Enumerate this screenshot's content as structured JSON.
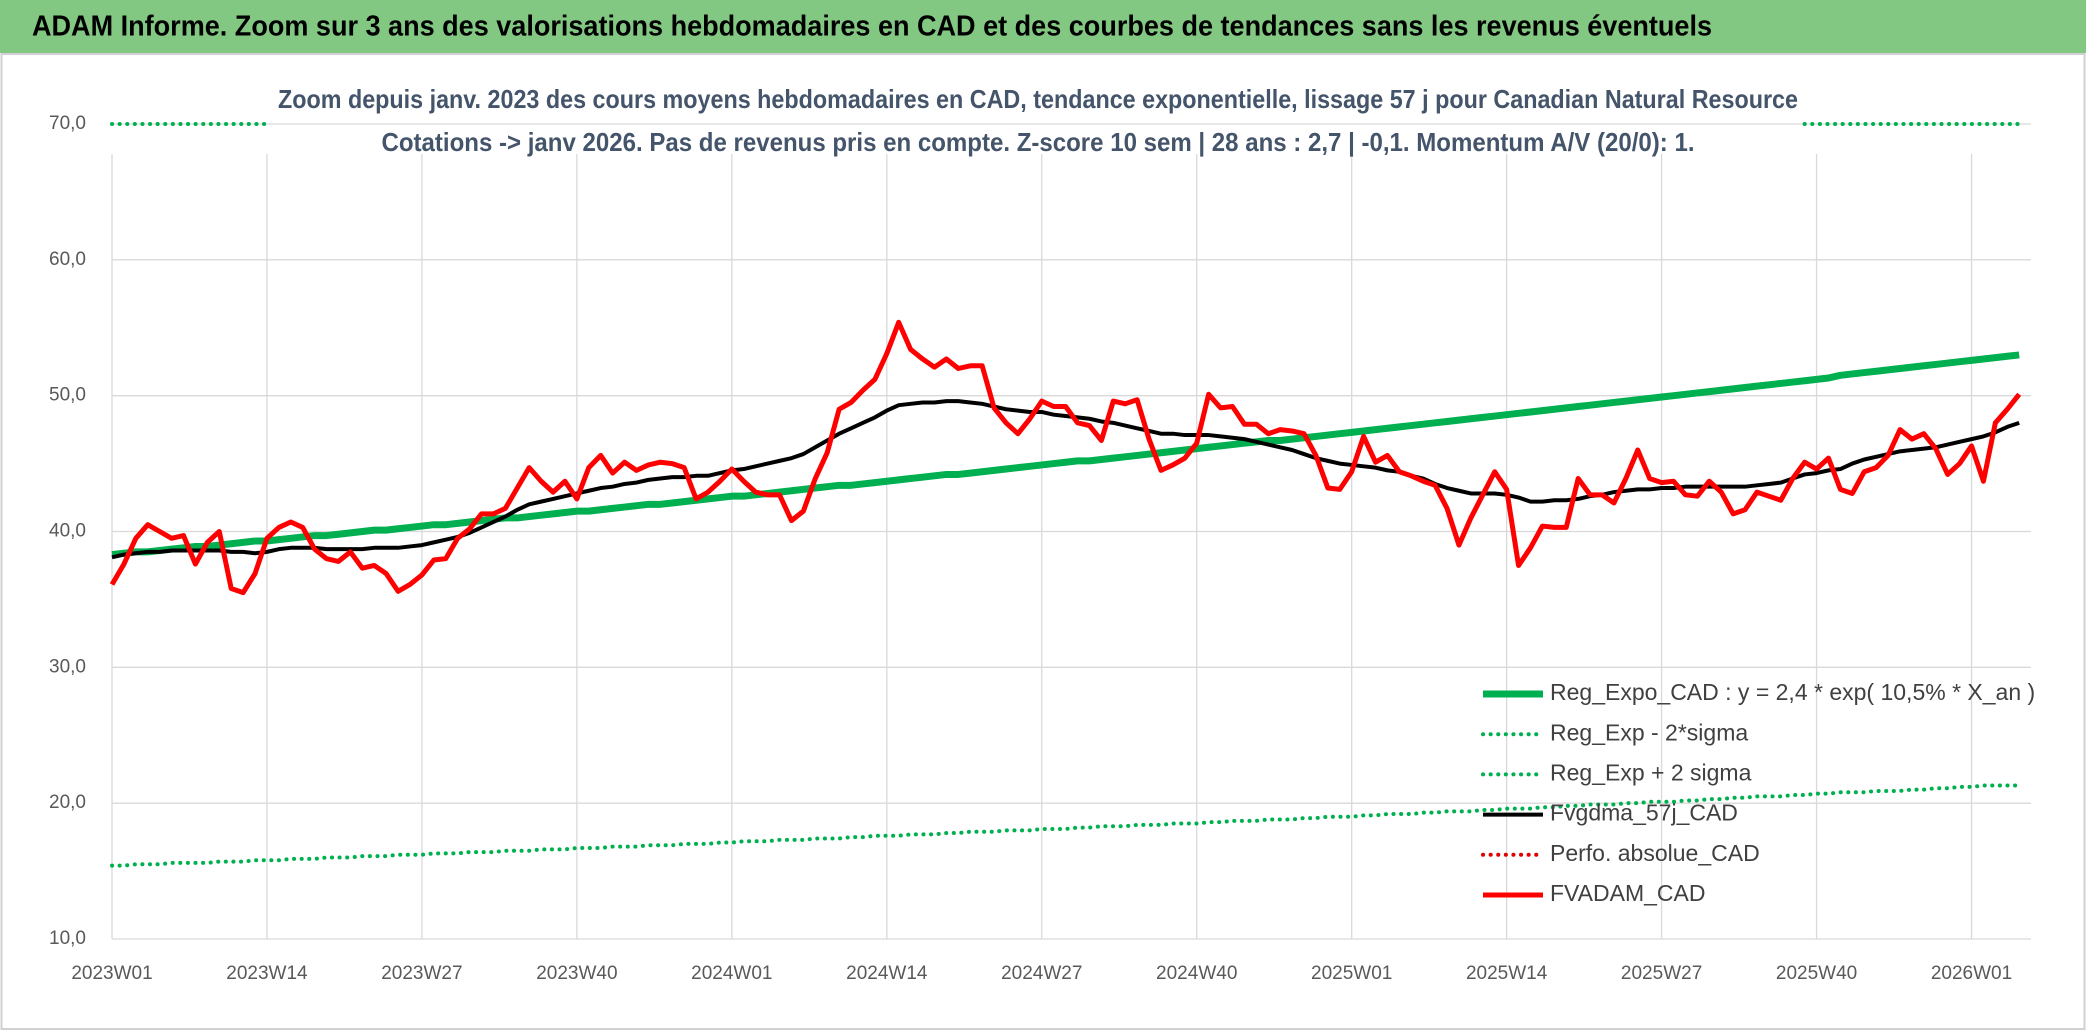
{
  "chart_data": {
    "type": "line",
    "title": "ADAM Informe. Zoom sur 3 ans des valorisations hebdomadaires en CAD et des courbes de tendances sans les revenus éventuels",
    "subtitle": [
      "Zoom depuis janv. 2023 des cours moyens hebdomadaires en CAD, tendance exponentielle, lissage 57 j pour Canadian Natural Resource",
      "Cotations -> janv 2026. Pas de revenus pris en compte. Z-score 10 sem | 28 ans : 2,7 | -0,1. Momentum A/V (20/0): 1."
    ],
    "categories": [
      "2023W01",
      null,
      null,
      null,
      null,
      null,
      null,
      null,
      null,
      null,
      null,
      null,
      null,
      "2023W14",
      null,
      null,
      null,
      null,
      null,
      null,
      null,
      null,
      null,
      null,
      null,
      null,
      "2023W27",
      null,
      null,
      null,
      null,
      null,
      null,
      null,
      null,
      null,
      null,
      null,
      null,
      "2023W40",
      null,
      null,
      null,
      null,
      null,
      null,
      null,
      null,
      null,
      null,
      null,
      null,
      "2024W01",
      null,
      null,
      null,
      null,
      null,
      null,
      null,
      null,
      null,
      null,
      null,
      null,
      "2024W14",
      null,
      null,
      null,
      null,
      null,
      null,
      null,
      null,
      null,
      null,
      null,
      null,
      "2024W27",
      null,
      null,
      null,
      null,
      null,
      null,
      null,
      null,
      null,
      null,
      null,
      null,
      "2024W40",
      null,
      null,
      null,
      null,
      null,
      null,
      null,
      null,
      null,
      null,
      null,
      null,
      "2025W01",
      null,
      null,
      null,
      null,
      null,
      null,
      null,
      null,
      null,
      null,
      null,
      null,
      "2025W14",
      null,
      null,
      null,
      null,
      null,
      null,
      null,
      null,
      null,
      null,
      null,
      null,
      "2025W27",
      null,
      null,
      null,
      null,
      null,
      null,
      null,
      null,
      null,
      null,
      null,
      null,
      "2025W40",
      null,
      null,
      null,
      null,
      null,
      null,
      null,
      null,
      null,
      null,
      null,
      null,
      "2026W01",
      null,
      null,
      null,
      null
    ],
    "ylim": [
      10,
      70
    ],
    "yticks": [
      {
        "value": 10,
        "label": "10,0"
      },
      {
        "value": 20,
        "label": "20,0"
      },
      {
        "value": 30,
        "label": "30,0"
      },
      {
        "value": 40,
        "label": "40,0"
      },
      {
        "value": 50,
        "label": "50,0"
      },
      {
        "value": 60,
        "label": "60,0"
      },
      {
        "value": 70,
        "label": "70,0"
      }
    ],
    "grid": true,
    "legend": "lower right",
    "series": [
      {
        "name": "Reg_Expo_CAD : y = 2,4 * exp( 10,5% *  X_an )",
        "color": "#00b050",
        "style": "solid",
        "values": [
          38.3,
          38.4,
          38.5,
          38.5,
          38.6,
          38.7,
          38.8,
          38.9,
          38.9,
          39.0,
          39.1,
          39.2,
          39.3,
          39.3,
          39.4,
          39.5,
          39.6,
          39.7,
          39.7,
          39.8,
          39.9,
          40.0,
          40.1,
          40.1,
          40.2,
          40.3,
          40.4,
          40.5,
          40.5,
          40.6,
          40.7,
          40.8,
          40.9,
          41.0,
          41.0,
          41.1,
          41.2,
          41.3,
          41.4,
          41.5,
          41.5,
          41.6,
          41.7,
          41.8,
          41.9,
          42.0,
          42.0,
          42.1,
          42.2,
          42.3,
          42.4,
          42.5,
          42.6,
          42.6,
          42.7,
          42.8,
          42.9,
          43.0,
          43.1,
          43.2,
          43.3,
          43.4,
          43.4,
          43.5,
          43.6,
          43.7,
          43.8,
          43.9,
          44.0,
          44.1,
          44.2,
          44.2,
          44.3,
          44.4,
          44.5,
          44.6,
          44.7,
          44.8,
          44.9,
          45.0,
          45.1,
          45.2,
          45.2,
          45.3,
          45.4,
          45.5,
          45.6,
          45.7,
          45.8,
          45.9,
          46.0,
          46.1,
          46.2,
          46.3,
          46.4,
          46.5,
          46.6,
          46.7,
          46.7,
          46.8,
          46.9,
          47.0,
          47.1,
          47.2,
          47.3,
          47.4,
          47.5,
          47.6,
          47.7,
          47.8,
          47.9,
          48.0,
          48.1,
          48.2,
          48.3,
          48.4,
          48.5,
          48.6,
          48.7,
          48.8,
          48.9,
          49.0,
          49.1,
          49.2,
          49.3,
          49.4,
          49.5,
          49.6,
          49.7,
          49.8,
          49.9,
          50.0,
          50.1,
          50.2,
          50.3,
          50.4,
          50.5,
          50.6,
          50.7,
          50.8,
          50.9,
          51.0,
          51.1,
          51.2,
          51.3,
          51.5,
          51.6,
          51.7,
          51.8,
          51.9,
          52.0,
          52.1,
          52.2,
          52.3,
          52.4,
          52.5,
          52.6,
          52.7,
          52.8,
          52.9,
          53.0
        ]
      },
      {
        "name": "Reg_Exp - 2*sigma",
        "color": "#00b050",
        "style": "dotted",
        "values": [
          15.4,
          15.4,
          15.5,
          15.5,
          15.5,
          15.6,
          15.6,
          15.6,
          15.6,
          15.7,
          15.7,
          15.7,
          15.8,
          15.8,
          15.8,
          15.9,
          15.9,
          15.9,
          16.0,
          16.0,
          16.0,
          16.1,
          16.1,
          16.1,
          16.2,
          16.2,
          16.2,
          16.3,
          16.3,
          16.3,
          16.4,
          16.4,
          16.4,
          16.5,
          16.5,
          16.5,
          16.6,
          16.6,
          16.6,
          16.7,
          16.7,
          16.7,
          16.8,
          16.8,
          16.8,
          16.9,
          16.9,
          16.9,
          17.0,
          17.0,
          17.0,
          17.1,
          17.1,
          17.2,
          17.2,
          17.2,
          17.3,
          17.3,
          17.3,
          17.4,
          17.4,
          17.4,
          17.5,
          17.5,
          17.6,
          17.6,
          17.6,
          17.7,
          17.7,
          17.7,
          17.8,
          17.8,
          17.9,
          17.9,
          17.9,
          18.0,
          18.0,
          18.0,
          18.1,
          18.1,
          18.1,
          18.2,
          18.2,
          18.3,
          18.3,
          18.3,
          18.4,
          18.4,
          18.4,
          18.5,
          18.5,
          18.5,
          18.6,
          18.6,
          18.7,
          18.7,
          18.7,
          18.8,
          18.8,
          18.8,
          18.9,
          18.9,
          19.0,
          19.0,
          19.0,
          19.1,
          19.1,
          19.2,
          19.2,
          19.2,
          19.3,
          19.3,
          19.4,
          19.4,
          19.4,
          19.5,
          19.5,
          19.6,
          19.6,
          19.6,
          19.7,
          19.7,
          19.8,
          19.8,
          19.9,
          19.9,
          19.9,
          20.0,
          20.0,
          20.1,
          20.1,
          20.1,
          20.2,
          20.2,
          20.3,
          20.3,
          20.4,
          20.4,
          20.5,
          20.5,
          20.5,
          20.6,
          20.6,
          20.7,
          20.7,
          20.8,
          20.8,
          20.8,
          20.9,
          20.9,
          20.9,
          21.0,
          21.0,
          21.1,
          21.1,
          21.2,
          21.2,
          21.3,
          21.3,
          21.3,
          21.3
        ]
      },
      {
        "name": "Reg_Exp + 2 sigma",
        "color": "#00b050",
        "style": "dotted",
        "values": [
          70,
          70,
          70,
          70,
          70,
          70,
          70,
          70,
          70,
          70,
          70,
          70,
          70,
          70,
          null,
          null,
          null,
          null,
          null,
          null,
          null,
          null,
          null,
          null,
          null,
          null,
          null,
          null,
          null,
          null,
          null,
          null,
          null,
          null,
          null,
          null,
          null,
          null,
          null,
          null,
          null,
          null,
          null,
          null,
          null,
          null,
          null,
          null,
          null,
          null,
          null,
          null,
          null,
          null,
          null,
          null,
          null,
          null,
          null,
          null,
          null,
          null,
          null,
          null,
          null,
          null,
          null,
          null,
          null,
          null,
          null,
          null,
          null,
          null,
          null,
          null,
          null,
          null,
          null,
          null,
          null,
          null,
          null,
          null,
          null,
          null,
          null,
          null,
          null,
          null,
          null,
          null,
          null,
          null,
          null,
          null,
          null,
          null,
          null,
          null,
          null,
          null,
          null,
          null,
          null,
          null,
          null,
          null,
          null,
          null,
          null,
          null,
          null,
          null,
          null,
          null,
          null,
          null,
          null,
          null,
          null,
          null,
          null,
          null,
          null,
          null,
          null,
          null,
          null,
          null,
          null,
          null,
          null,
          null,
          null,
          null,
          null,
          null,
          null,
          null,
          null,
          null,
          70,
          70,
          70,
          70,
          70,
          70,
          70,
          70,
          70,
          70,
          70,
          70,
          70,
          70,
          70,
          70,
          70,
          70,
          70
        ]
      },
      {
        "name": "Fvgdma_57j_CAD",
        "color": "#000000",
        "style": "solid",
        "values": [
          38.1,
          38.3,
          38.4,
          38.5,
          38.5,
          38.6,
          38.6,
          38.6,
          38.6,
          38.6,
          38.5,
          38.5,
          38.4,
          38.5,
          38.7,
          38.8,
          38.8,
          38.8,
          38.7,
          38.7,
          38.7,
          38.7,
          38.8,
          38.8,
          38.8,
          38.9,
          39.0,
          39.2,
          39.4,
          39.6,
          39.9,
          40.3,
          40.7,
          41.1,
          41.6,
          42.0,
          42.2,
          42.4,
          42.6,
          42.8,
          43.0,
          43.2,
          43.3,
          43.5,
          43.6,
          43.8,
          43.9,
          44.0,
          44.0,
          44.1,
          44.1,
          44.3,
          44.5,
          44.6,
          44.8,
          45.0,
          45.2,
          45.4,
          45.7,
          46.2,
          46.7,
          47.2,
          47.6,
          48.0,
          48.4,
          48.9,
          49.3,
          49.4,
          49.5,
          49.5,
          49.6,
          49.6,
          49.5,
          49.4,
          49.2,
          49.0,
          48.9,
          48.8,
          48.8,
          48.6,
          48.5,
          48.4,
          48.3,
          48.1,
          48.0,
          47.8,
          47.6,
          47.4,
          47.2,
          47.2,
          47.1,
          47.1,
          47.1,
          47.0,
          46.9,
          46.8,
          46.6,
          46.4,
          46.2,
          46.0,
          45.7,
          45.4,
          45.2,
          45.0,
          44.9,
          44.8,
          44.7,
          44.5,
          44.4,
          44.1,
          43.9,
          43.5,
          43.2,
          43.0,
          42.8,
          42.8,
          42.8,
          42.7,
          42.5,
          42.2,
          42.2,
          42.3,
          42.3,
          42.4,
          42.6,
          42.7,
          42.9,
          43.0,
          43.1,
          43.1,
          43.2,
          43.2,
          43.3,
          43.3,
          43.3,
          43.3,
          43.3,
          43.3,
          43.4,
          43.5,
          43.6,
          43.9,
          44.2,
          44.3,
          44.5,
          44.6,
          45.0,
          45.3,
          45.5,
          45.7,
          45.9,
          46.0,
          46.1,
          46.2,
          46.4,
          46.6,
          46.8,
          47.0,
          47.3,
          47.7,
          48.0
        ]
      },
      {
        "name": "Perfo. absolue_CAD",
        "color": "#e00000",
        "style": "dotted",
        "values": [
          null,
          null,
          null,
          null,
          null,
          null,
          null,
          null,
          null,
          null,
          null,
          null,
          null,
          null,
          null,
          null,
          null,
          null,
          null,
          null,
          null,
          null,
          null,
          null,
          null,
          null,
          null,
          null,
          null,
          null,
          null,
          null,
          null,
          null,
          null,
          null,
          null,
          null,
          null,
          null,
          null,
          null,
          null,
          null,
          null,
          null,
          null,
          null,
          null,
          null,
          null,
          null,
          null,
          null,
          null,
          null,
          null,
          null,
          null,
          null,
          null,
          null,
          null,
          null,
          null,
          null,
          null,
          null,
          null,
          null,
          null,
          null,
          null,
          null,
          null,
          null,
          null,
          null,
          null,
          null,
          null,
          null,
          null,
          null,
          null,
          null,
          null,
          null,
          null,
          null,
          null,
          null,
          null,
          null,
          null,
          null,
          null,
          null,
          null,
          null,
          null,
          null,
          null,
          null,
          null,
          null,
          null,
          null,
          null,
          null,
          null,
          null,
          null,
          null,
          null,
          null,
          null,
          null,
          null,
          null,
          null,
          null,
          null,
          null,
          null,
          null,
          null,
          null,
          null,
          null,
          null,
          null,
          null,
          null,
          null,
          null,
          null,
          null,
          null,
          null,
          null,
          null,
          null,
          null,
          null,
          null,
          null,
          null,
          null,
          null,
          null,
          null,
          null,
          null,
          null,
          null,
          null,
          null,
          null,
          null,
          null
        ]
      },
      {
        "name": "FVADAM_CAD",
        "color": "#ff0000",
        "style": "solid",
        "values": [
          36.1,
          37.6,
          39.5,
          40.5,
          40.0,
          39.5,
          39.7,
          37.6,
          39.2,
          40.0,
          35.8,
          35.5,
          36.9,
          39.5,
          40.3,
          40.7,
          40.3,
          38.7,
          38.0,
          37.8,
          38.5,
          37.3,
          37.5,
          36.9,
          35.6,
          36.1,
          36.8,
          37.9,
          38.0,
          39.5,
          40.2,
          41.3,
          41.3,
          41.7,
          43.2,
          44.7,
          43.7,
          42.9,
          43.7,
          42.4,
          44.7,
          45.6,
          44.3,
          45.1,
          44.5,
          44.9,
          45.1,
          45.0,
          44.7,
          42.4,
          42.9,
          43.7,
          44.6,
          43.7,
          42.9,
          42.7,
          42.7,
          40.8,
          41.5,
          43.9,
          45.8,
          49.0,
          49.5,
          50.4,
          51.2,
          53.1,
          55.4,
          53.4,
          52.7,
          52.1,
          52.7,
          52.0,
          52.2,
          52.2,
          49.1,
          48.0,
          47.2,
          48.3,
          49.6,
          49.2,
          49.2,
          48.0,
          47.8,
          46.7,
          49.6,
          49.4,
          49.7,
          46.8,
          44.5,
          44.9,
          45.4,
          46.5,
          50.1,
          49.1,
          49.2,
          47.9,
          47.9,
          47.2,
          47.5,
          47.4,
          47.2,
          45.6,
          43.2,
          43.1,
          44.4,
          47.0,
          45.1,
          45.6,
          44.4,
          44.1,
          43.7,
          43.4,
          41.7,
          39.0,
          41.0,
          42.7,
          44.4,
          43.1,
          37.5,
          38.8,
          40.4,
          40.3,
          40.3,
          43.9,
          42.7,
          42.7,
          42.1,
          43.9,
          46.0,
          43.9,
          43.6,
          43.7,
          42.7,
          42.6,
          43.7,
          42.9,
          41.3,
          41.6,
          42.9,
          42.6,
          42.3,
          43.9,
          45.1,
          44.6,
          45.4,
          43.1,
          42.8,
          44.4,
          44.7,
          45.6,
          47.5,
          46.8,
          47.2,
          46.1,
          44.2,
          45.0,
          46.3,
          43.7,
          48.0,
          49.0,
          50.1
        ]
      }
    ]
  }
}
